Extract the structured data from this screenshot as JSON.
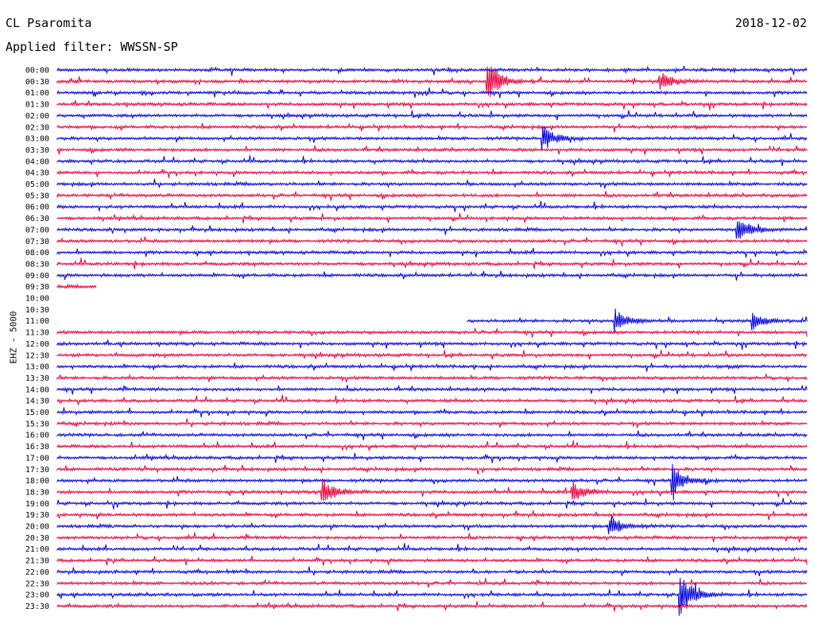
{
  "header": {
    "station": "CL Psaromita",
    "filter_label": "Applied filter: WWSSN-SP",
    "date": "2018-12-02"
  },
  "channel_label": "EHZ - 5000",
  "colors": {
    "even": "#0000dd",
    "odd": "#e8003c"
  },
  "chart_data": {
    "type": "line",
    "title": "CL Psaromita",
    "subtitle": "Applied filter: WWSSN-SP",
    "ylabel": "EHZ - 5000",
    "xlabel": "",
    "x_unit": "minutes",
    "xlim": [
      0,
      30
    ],
    "rows": [
      "00:00",
      "00:30",
      "01:00",
      "01:30",
      "02:00",
      "02:30",
      "03:00",
      "03:30",
      "04:00",
      "04:30",
      "05:00",
      "05:30",
      "06:00",
      "06:30",
      "07:00",
      "07:30",
      "08:00",
      "08:30",
      "09:00",
      "09:30",
      "10:00",
      "10:30",
      "11:00",
      "11:30",
      "12:00",
      "12:30",
      "13:00",
      "13:30",
      "14:00",
      "14:30",
      "15:00",
      "15:30",
      "16:00",
      "16:30",
      "17:00",
      "17:30",
      "18:00",
      "18:30",
      "19:00",
      "19:30",
      "20:00",
      "20:30",
      "21:00",
      "21:30",
      "22:00",
      "22:30",
      "23:00",
      "23:30"
    ],
    "data_coverage": [
      [
        0,
        30
      ],
      [
        0,
        30
      ],
      [
        0,
        30
      ],
      [
        0,
        30
      ],
      [
        0,
        30
      ],
      [
        0,
        30
      ],
      [
        0,
        30
      ],
      [
        0,
        30
      ],
      [
        0,
        30
      ],
      [
        0,
        30
      ],
      [
        0,
        30
      ],
      [
        0,
        30
      ],
      [
        0,
        30
      ],
      [
        0,
        30
      ],
      [
        0,
        30
      ],
      [
        0,
        30
      ],
      [
        0,
        30
      ],
      [
        0,
        30
      ],
      [
        0,
        30
      ],
      [
        0,
        1.6
      ],
      null,
      null,
      [
        16.4,
        30
      ],
      [
        0,
        30
      ],
      [
        0,
        30
      ],
      [
        0,
        30
      ],
      [
        0,
        30
      ],
      [
        0,
        30
      ],
      [
        0,
        30
      ],
      [
        0,
        30
      ],
      [
        0,
        30
      ],
      [
        0,
        30
      ],
      [
        0,
        30
      ],
      [
        0,
        30
      ],
      [
        0,
        30
      ],
      [
        0,
        30
      ],
      [
        0,
        30
      ],
      [
        0,
        30
      ],
      [
        0,
        30
      ],
      [
        0,
        30
      ],
      [
        0,
        30
      ],
      [
        0,
        30
      ],
      [
        0,
        30
      ],
      [
        0,
        30
      ],
      [
        0,
        30
      ],
      [
        0,
        30
      ],
      [
        0,
        30
      ],
      [
        0,
        30
      ]
    ],
    "events": [
      {
        "row": 1,
        "minute": 17.2,
        "amplitude": 1.0
      },
      {
        "row": 1,
        "minute": 24.1,
        "amplitude": 0.45
      },
      {
        "row": 6,
        "minute": 19.4,
        "amplitude": 0.55
      },
      {
        "row": 14,
        "minute": 27.2,
        "amplitude": 0.6
      },
      {
        "row": 22,
        "minute": 22.3,
        "amplitude": 0.5
      },
      {
        "row": 22,
        "minute": 27.8,
        "amplitude": 0.4
      },
      {
        "row": 36,
        "minute": 24.6,
        "amplitude": 0.7
      },
      {
        "row": 37,
        "minute": 10.6,
        "amplitude": 0.55
      },
      {
        "row": 37,
        "minute": 20.6,
        "amplitude": 0.45
      },
      {
        "row": 40,
        "minute": 22.1,
        "amplitude": 0.45
      },
      {
        "row": 46,
        "minute": 24.9,
        "amplitude": 1.0
      }
    ]
  }
}
